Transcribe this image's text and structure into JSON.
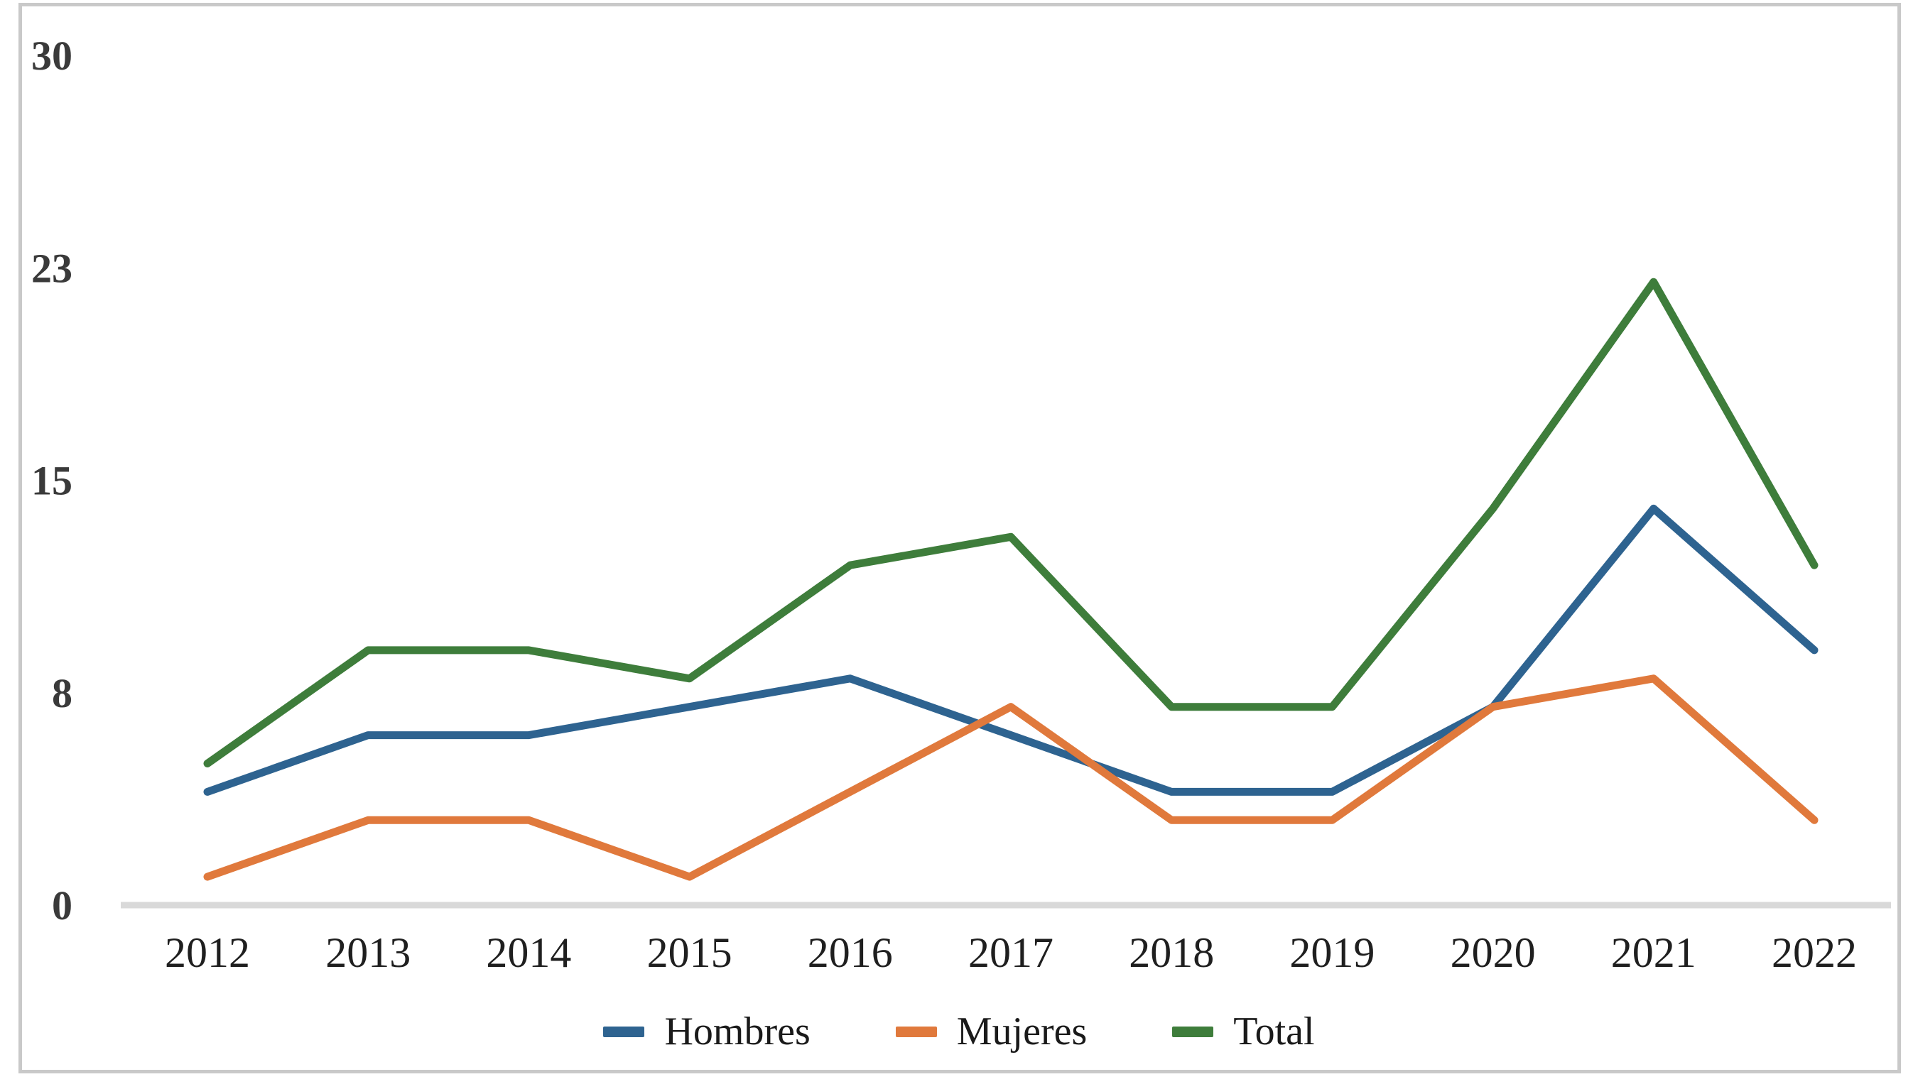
{
  "chart_data": {
    "type": "line",
    "title": "",
    "xlabel": "",
    "ylabel": "",
    "categories": [
      "2012",
      "2013",
      "2014",
      "2015",
      "2016",
      "2017",
      "2018",
      "2019",
      "2020",
      "2021",
      "2022"
    ],
    "series": [
      {
        "name": "Hombres",
        "color": "#2e6390",
        "values": [
          4,
          6,
          6,
          7,
          8,
          6,
          4,
          4,
          7,
          14,
          9
        ]
      },
      {
        "name": "Mujeres",
        "color": "#e0793c",
        "values": [
          1,
          3,
          3,
          1,
          4,
          7,
          3,
          3,
          7,
          8,
          3
        ]
      },
      {
        "name": "Total",
        "color": "#3e7d3b",
        "values": [
          5,
          9,
          9,
          8,
          12,
          13,
          7,
          7,
          14,
          22,
          12
        ]
      }
    ],
    "yticks": [
      {
        "label": "0",
        "value": 0
      },
      {
        "label": "8",
        "value": 7.5
      },
      {
        "label": "15",
        "value": 15
      },
      {
        "label": "23",
        "value": 22.5
      },
      {
        "label": "30",
        "value": 30
      }
    ],
    "ylim": [
      0,
      30
    ],
    "grid": false,
    "legend_position": "bottom-center",
    "colors": {
      "axis_line": "#d9d9d9",
      "ytick_text": "#3a3a3a",
      "xtick_text": "#1f1f1f",
      "border": "#c9c9c9",
      "background": "#ffffff"
    }
  }
}
